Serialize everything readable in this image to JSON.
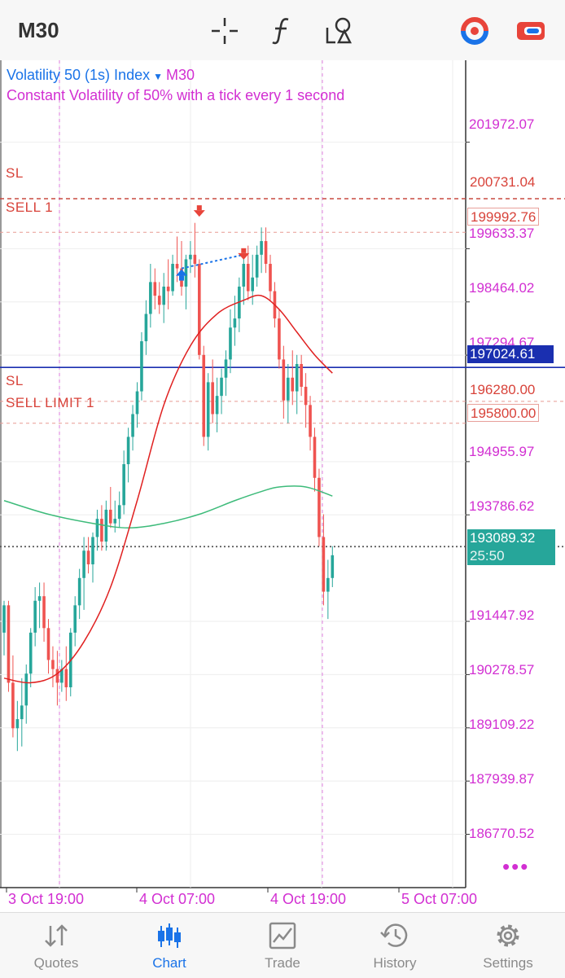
{
  "toolbar": {
    "timeframe": "M30",
    "icons": [
      "crosshair-icon",
      "function-icon",
      "objects-icon",
      "account-icon",
      "trade-toggle-icon"
    ]
  },
  "chart": {
    "symbol": "Volatility 50 (1s) Index",
    "timeframe": "M30",
    "description": "Constant Volatility of 50% with a tick every 1 second",
    "price_scale": [
      "201972.07",
      "199633.37",
      "198464.02",
      "197294.67",
      "194955.97",
      "193786.62",
      "191447.92",
      "190278.57",
      "189109.22",
      "187939.87",
      "186770.52"
    ],
    "time_labels": [
      "3 Oct 19:00",
      "4 Oct 07:00",
      "4 Oct 19:00",
      "5 Oct 07:00"
    ],
    "levels": {
      "sl_top": {
        "label": "SL",
        "price": "200731.04"
      },
      "sell": {
        "label": "SELL 1",
        "price": "199992.76"
      },
      "current_line": {
        "price": "197024.61"
      },
      "sl_bottom": {
        "label": "SL",
        "price": "196280.00"
      },
      "sell_limit": {
        "label": "SELL LIMIT 1",
        "price": "195800.00"
      },
      "bid": {
        "price": "193089.32",
        "countdown": "25:50"
      }
    },
    "colors": {
      "bull": "#26a69a",
      "bear": "#ef5350",
      "ma_fast": "#e02020",
      "ma_slow": "#3dbb7a",
      "accent": "#d22fd2",
      "blue_line": "#1a2fb0",
      "bid_bg": "#26a69a"
    }
  },
  "chart_data": {
    "type": "candlestick",
    "ylim": [
      185600,
      203700
    ],
    "candles": [
      [
        191200,
        191900,
        190700,
        191800
      ],
      [
        191800,
        191900,
        189900,
        190100
      ],
      [
        190100,
        190700,
        188900,
        189100
      ],
      [
        189100,
        189700,
        188600,
        189300
      ],
      [
        189300,
        190200,
        188700,
        189600
      ],
      [
        189600,
        190500,
        189200,
        190300
      ],
      [
        190300,
        191300,
        190000,
        191200
      ],
      [
        191200,
        192200,
        190900,
        191900
      ],
      [
        191900,
        192300,
        191300,
        192000
      ],
      [
        192000,
        192300,
        191000,
        191300
      ],
      [
        191300,
        191500,
        190300,
        190600
      ],
      [
        190600,
        190900,
        190000,
        190400
      ],
      [
        190400,
        190800,
        189600,
        190100
      ],
      [
        190100,
        190600,
        189900,
        190400
      ],
      [
        190400,
        190900,
        189700,
        190000
      ],
      [
        190000,
        191300,
        189800,
        191200
      ],
      [
        191200,
        192000,
        190900,
        191800
      ],
      [
        191800,
        192600,
        191500,
        192400
      ],
      [
        192400,
        193300,
        191700,
        193000
      ],
      [
        193000,
        193300,
        192500,
        192700
      ],
      [
        192700,
        193400,
        192300,
        193300
      ],
      [
        193300,
        193900,
        193000,
        193700
      ],
      [
        193700,
        194000,
        193000,
        193200
      ],
      [
        193200,
        194100,
        193000,
        193900
      ],
      [
        193900,
        194400,
        193500,
        193600
      ],
      [
        193600,
        194100,
        193400,
        193700
      ],
      [
        193700,
        194300,
        193500,
        194000
      ],
      [
        194000,
        195200,
        193800,
        194900
      ],
      [
        194900,
        195700,
        194500,
        195500
      ],
      [
        195500,
        196200,
        195200,
        196000
      ],
      [
        196000,
        196700,
        195700,
        196500
      ],
      [
        196500,
        197800,
        196300,
        197600
      ],
      [
        197600,
        198500,
        197300,
        198200
      ],
      [
        198200,
        199300,
        197900,
        198900
      ],
      [
        198900,
        199200,
        198300,
        198600
      ],
      [
        198600,
        198900,
        198200,
        198400
      ],
      [
        198400,
        199100,
        198000,
        198800
      ],
      [
        198800,
        199400,
        198300,
        198700
      ],
      [
        198700,
        199500,
        198600,
        199300
      ],
      [
        199300,
        199900,
        198900,
        199200
      ],
      [
        199200,
        199800,
        198600,
        198800
      ],
      [
        198800,
        199500,
        198300,
        199400
      ],
      [
        199400,
        199800,
        199100,
        199500
      ],
      [
        199500,
        200200,
        199000,
        199300
      ],
      [
        199300,
        199400,
        197200,
        197300
      ],
      [
        197300,
        197500,
        195300,
        195500
      ],
      [
        195500,
        196900,
        195200,
        196700
      ],
      [
        196700,
        197200,
        195800,
        196000
      ],
      [
        196000,
        196800,
        195600,
        196400
      ],
      [
        196400,
        197000,
        196000,
        196800
      ],
      [
        196800,
        197400,
        196400,
        197200
      ],
      [
        197200,
        198300,
        196900,
        197900
      ],
      [
        197900,
        198600,
        197500,
        198100
      ],
      [
        198100,
        199000,
        197800,
        198800
      ],
      [
        198800,
        199500,
        198400,
        199300
      ],
      [
        199300,
        199700,
        198500,
        198700
      ],
      [
        198700,
        199500,
        198400,
        199000
      ],
      [
        199000,
        199700,
        198800,
        199500
      ],
      [
        199500,
        200100,
        199100,
        199800
      ],
      [
        199800,
        200100,
        199100,
        199300
      ],
      [
        199300,
        199500,
        198500,
        198700
      ],
      [
        198700,
        198900,
        197900,
        198100
      ],
      [
        198100,
        198300,
        197000,
        197200
      ],
      [
        197200,
        197500,
        195900,
        196300
      ],
      [
        196300,
        197100,
        195800,
        196800
      ],
      [
        196800,
        197400,
        196200,
        196500
      ],
      [
        196500,
        197300,
        196000,
        197100
      ],
      [
        197100,
        197300,
        196400,
        196600
      ],
      [
        196600,
        196900,
        195700,
        196200
      ],
      [
        196200,
        196400,
        195200,
        195500
      ],
      [
        195500,
        195700,
        194300,
        194600
      ],
      [
        194600,
        194800,
        193100,
        193300
      ],
      [
        193300,
        193800,
        191800,
        192100
      ],
      [
        192100,
        192800,
        191500,
        192400
      ],
      [
        192400,
        193100,
        192200,
        192900
      ]
    ],
    "ma_fast": [
      [
        0,
        190200
      ],
      [
        6,
        190100
      ],
      [
        12,
        190300
      ],
      [
        18,
        191000
      ],
      [
        24,
        192200
      ],
      [
        30,
        194100
      ],
      [
        36,
        196200
      ],
      [
        42,
        197500
      ],
      [
        48,
        198200
      ],
      [
        54,
        198500
      ],
      [
        58,
        198600
      ],
      [
        62,
        198300
      ],
      [
        66,
        197800
      ],
      [
        70,
        197300
      ],
      [
        74,
        196900
      ]
    ],
    "ma_slow": [
      [
        0,
        194100
      ],
      [
        10,
        193800
      ],
      [
        20,
        193600
      ],
      [
        28,
        193500
      ],
      [
        36,
        193600
      ],
      [
        44,
        193800
      ],
      [
        52,
        194100
      ],
      [
        58,
        194300
      ],
      [
        62,
        194400
      ],
      [
        68,
        194400
      ],
      [
        74,
        194200
      ]
    ],
    "markers": {
      "buy": {
        "index": 40,
        "price": 199200
      },
      "sell_1": {
        "index": 44,
        "price": 200300
      },
      "sell_2": {
        "index": 54,
        "price": 199500
      }
    }
  },
  "bottom_nav": [
    {
      "label": "Quotes",
      "icon": "quotes-icon",
      "active": false
    },
    {
      "label": "Chart",
      "icon": "chart-icon",
      "active": true
    },
    {
      "label": "Trade",
      "icon": "trade-icon",
      "active": false
    },
    {
      "label": "History",
      "icon": "history-icon",
      "active": false
    },
    {
      "label": "Settings",
      "icon": "settings-icon",
      "active": false
    }
  ]
}
